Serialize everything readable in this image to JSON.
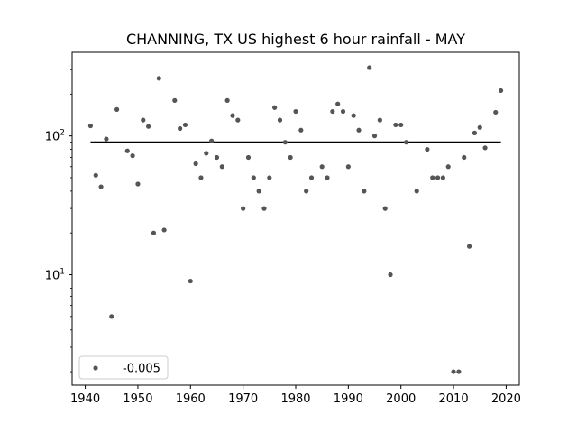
{
  "chart_data": {
    "type": "scatter",
    "title": "CHANNING, TX US highest 6 hour rainfall - MAY",
    "xlabel": "",
    "ylabel": "",
    "x_range": [
      1937.5,
      2022.5
    ],
    "y_range": [
      1.6,
      400
    ],
    "y_scale": "log",
    "x_ticks": [
      1940,
      1950,
      1960,
      1970,
      1980,
      1990,
      2000,
      2010,
      2020
    ],
    "y_ticks": [
      {
        "value": 10,
        "base": "10",
        "exp": "1"
      },
      {
        "value": 100,
        "base": "10",
        "exp": "2"
      }
    ],
    "grid": false,
    "legend_position": "lower-left",
    "series": [
      {
        "name": "-0.005",
        "color": "#555555",
        "marker": "circle",
        "points": [
          [
            1941,
            118
          ],
          [
            1942,
            52
          ],
          [
            1943,
            43
          ],
          [
            1944,
            95
          ],
          [
            1945,
            5
          ],
          [
            1946,
            155
          ],
          [
            1948,
            78
          ],
          [
            1949,
            72
          ],
          [
            1950,
            45
          ],
          [
            1951,
            130
          ],
          [
            1952,
            117
          ],
          [
            1953,
            20
          ],
          [
            1954,
            260
          ],
          [
            1955,
            21
          ],
          [
            1957,
            180
          ],
          [
            1958,
            113
          ],
          [
            1959,
            120
          ],
          [
            1960,
            9
          ],
          [
            1961,
            63
          ],
          [
            1962,
            50
          ],
          [
            1963,
            75
          ],
          [
            1964,
            92
          ],
          [
            1965,
            70
          ],
          [
            1966,
            60
          ],
          [
            1967,
            180
          ],
          [
            1968,
            140
          ],
          [
            1969,
            130
          ],
          [
            1970,
            30
          ],
          [
            1971,
            70
          ],
          [
            1972,
            50
          ],
          [
            1973,
            40
          ],
          [
            1974,
            30
          ],
          [
            1975,
            50
          ],
          [
            1976,
            160
          ],
          [
            1977,
            130
          ],
          [
            1978,
            90
          ],
          [
            1979,
            70
          ],
          [
            1980,
            150
          ],
          [
            1981,
            110
          ],
          [
            1982,
            40
          ],
          [
            1983,
            50
          ],
          [
            1985,
            60
          ],
          [
            1986,
            50
          ],
          [
            1987,
            150
          ],
          [
            1988,
            170
          ],
          [
            1989,
            150
          ],
          [
            1990,
            60
          ],
          [
            1991,
            140
          ],
          [
            1992,
            110
          ],
          [
            1993,
            40
          ],
          [
            1994,
            310
          ],
          [
            1995,
            100
          ],
          [
            1996,
            130
          ],
          [
            1997,
            30
          ],
          [
            1998,
            10
          ],
          [
            1999,
            120
          ],
          [
            2000,
            120
          ],
          [
            2001,
            90
          ],
          [
            2003,
            40
          ],
          [
            2005,
            80
          ],
          [
            2006,
            50
          ],
          [
            2007,
            50
          ],
          [
            2008,
            50
          ],
          [
            2009,
            60
          ],
          [
            2010,
            2
          ],
          [
            2011,
            2
          ],
          [
            2012,
            70
          ],
          [
            2013,
            16
          ],
          [
            2014,
            105
          ],
          [
            2015,
            115
          ],
          [
            2016,
            82
          ],
          [
            2018,
            148
          ],
          [
            2019,
            212
          ]
        ]
      }
    ],
    "trend_line": {
      "x": [
        1941,
        2019
      ],
      "y": [
        90,
        90
      ],
      "color": "#000000"
    }
  }
}
